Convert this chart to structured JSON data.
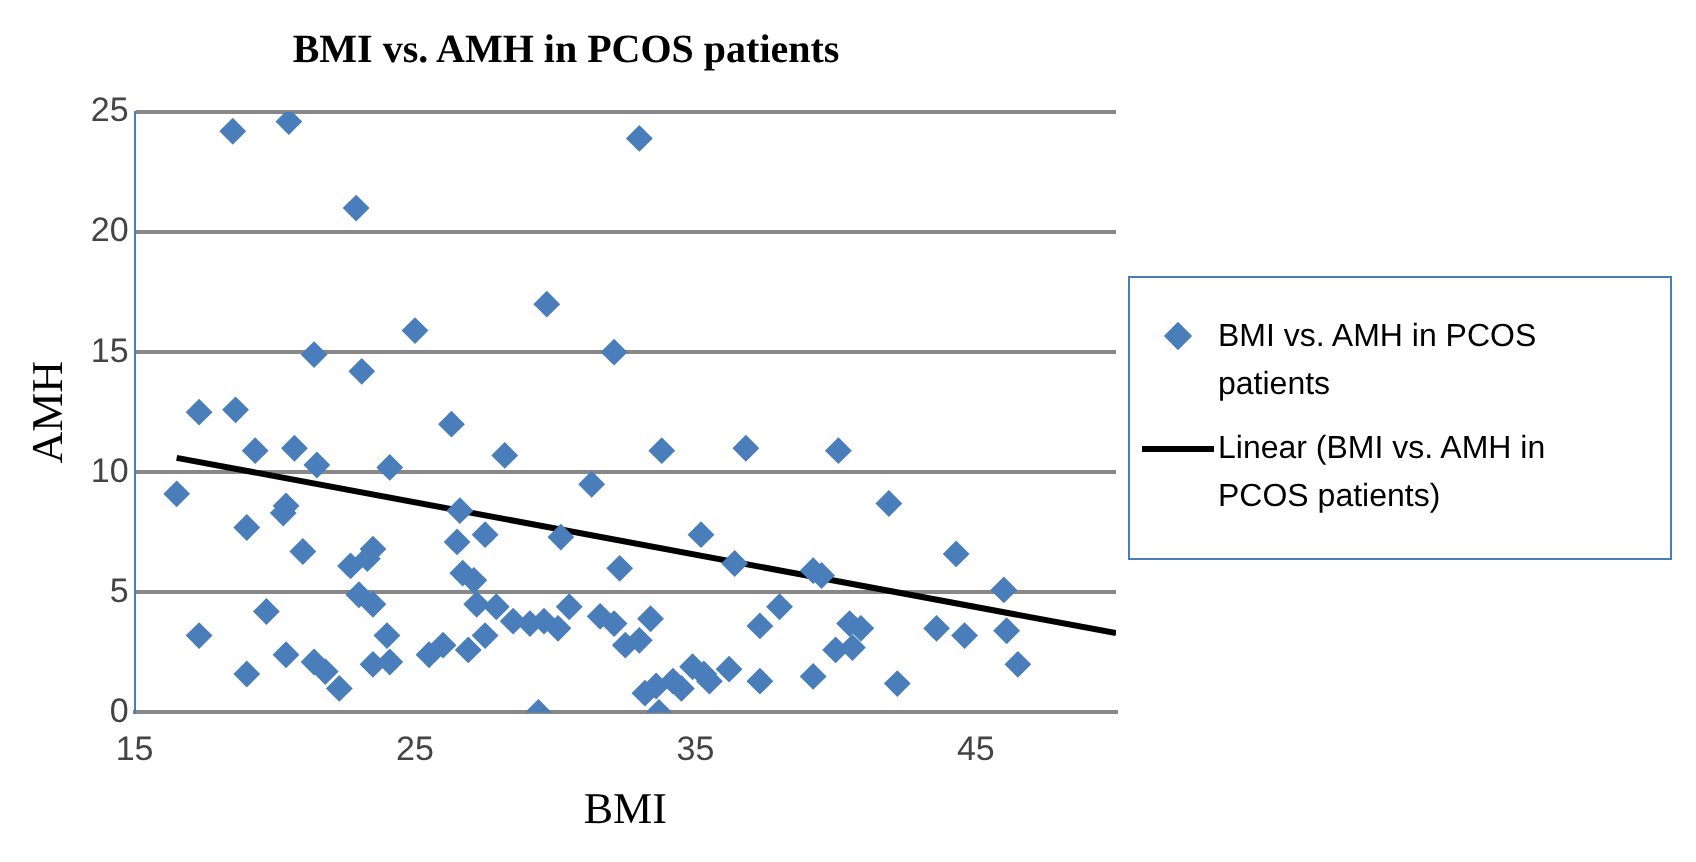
{
  "chart_data": {
    "type": "scatter",
    "title": "BMI vs. AMH in PCOS patients",
    "xlabel": "BMI",
    "ylabel": "AMH",
    "xlim": [
      15,
      50
    ],
    "xticks": [
      15,
      25,
      35,
      45
    ],
    "ylim": [
      0,
      25
    ],
    "yticks": [
      0,
      5,
      10,
      15,
      20,
      25
    ],
    "grid": "y",
    "legend": "right",
    "marker": "diamond",
    "series": [
      {
        "name": "BMI vs. AMH in PCOS patients",
        "color": "#4a7ebb",
        "type": "scatter",
        "x": [
          18.5,
          20.5,
          33,
          22.9,
          29.7,
          25,
          21.4,
          32.1,
          23.1,
          17.3,
          18.6,
          26.3,
          19.3,
          20.7,
          21.5,
          24.1,
          28.2,
          33.8,
          36.8,
          40.1,
          16.5,
          20.4,
          20.3,
          19,
          31.3,
          26.6,
          41.9,
          21,
          22.7,
          23.5,
          23.3,
          26.5,
          27.5,
          26.7,
          27.1,
          30.2,
          32.3,
          35.2,
          36.4,
          39.2,
          39.5,
          44.3,
          46,
          19.7,
          23,
          23.5,
          27.2,
          27.9,
          29.6,
          30.5,
          31.6,
          32.1,
          33.4,
          37.3,
          38,
          40.5,
          40.9,
          43.6,
          44.6,
          46.1,
          17.3,
          20.4,
          21.4,
          21.8,
          23.5,
          24,
          24.1,
          25.5,
          26,
          26.9,
          27.5,
          28.5,
          29.1,
          30.1,
          32.5,
          33,
          33.6,
          34.2,
          34.9,
          35.3,
          35.5,
          36.2,
          37.3,
          39.2,
          40,
          40.6,
          42.2,
          46.5,
          19,
          22.3,
          29.4,
          33.7,
          33.2,
          34.5
        ],
        "values": [
          24.2,
          24.6,
          23.9,
          21,
          17,
          15.9,
          14.9,
          15,
          14.2,
          12.5,
          12.6,
          12,
          10.9,
          11,
          10.3,
          10.2,
          10.7,
          10.9,
          11,
          10.9,
          9.1,
          8.6,
          8.3,
          7.7,
          9.5,
          8.4,
          8.7,
          6.7,
          6.1,
          6.8,
          6.4,
          7.1,
          7.4,
          5.8,
          5.5,
          7.3,
          6,
          7.4,
          6.2,
          5.9,
          5.7,
          6.6,
          5.1,
          4.2,
          4.9,
          4.5,
          4.5,
          4.4,
          3.8,
          4.4,
          4,
          3.7,
          3.9,
          3.6,
          4.4,
          3.7,
          3.5,
          3.5,
          3.2,
          3.4,
          3.2,
          2.4,
          2.1,
          1.7,
          2,
          3.2,
          2.1,
          2.4,
          2.8,
          2.6,
          3.2,
          3.8,
          3.7,
          3.5,
          2.8,
          3,
          1.1,
          1.3,
          1.9,
          1.6,
          1.3,
          1.8,
          1.3,
          1.5,
          2.6,
          2.7,
          1.2,
          2,
          1.6,
          1,
          0,
          0,
          0.8,
          1
        ]
      },
      {
        "name": "Linear (BMI vs. AMH in PCOS patients)",
        "color": "#000000",
        "type": "line",
        "marker": "none",
        "x": [
          16.5,
          50
        ],
        "values": [
          10.6,
          3.3
        ]
      }
    ]
  }
}
